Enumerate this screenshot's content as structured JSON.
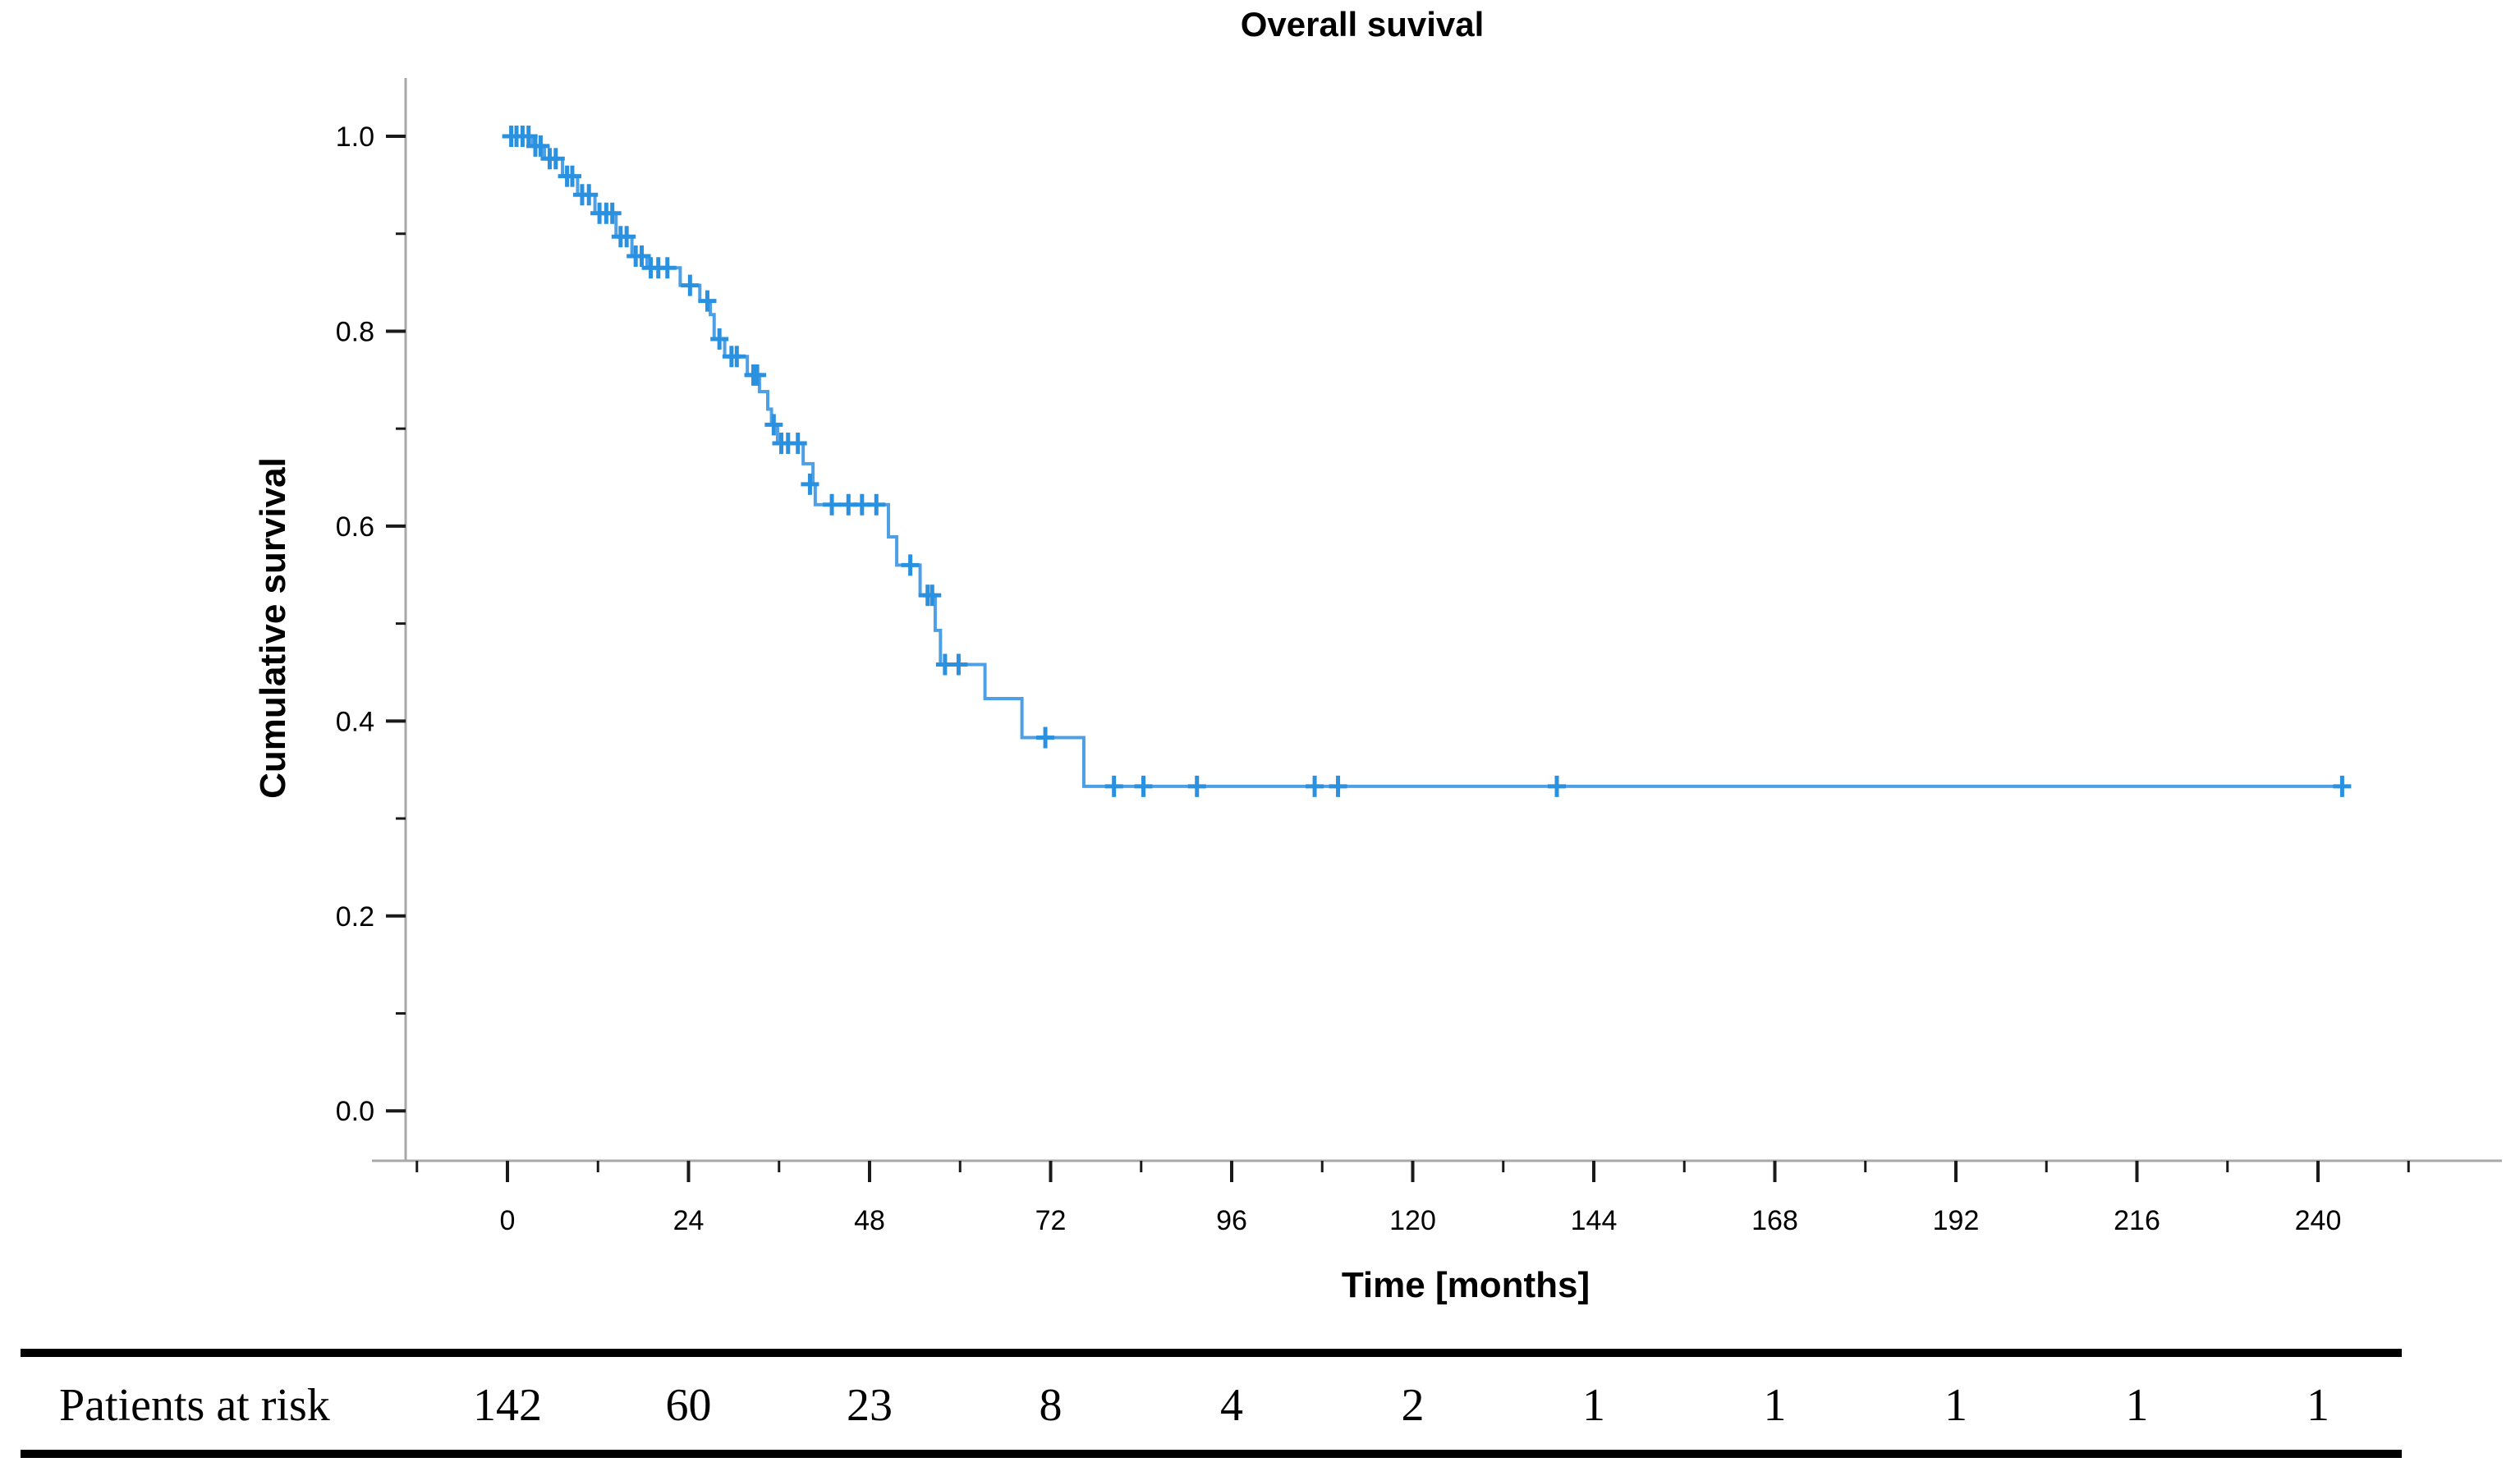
{
  "title": "Overall suvival",
  "axes": {
    "x": {
      "label": "Time [months]",
      "ticks": [
        0,
        24,
        48,
        72,
        96,
        120,
        144,
        168,
        192,
        216,
        240
      ],
      "minor_ticks": [
        -12,
        12,
        36,
        60,
        84,
        108,
        132,
        156,
        180,
        204,
        228,
        252
      ]
    },
    "y": {
      "label": "Cumulative survival",
      "tick_labels": [
        "1.0",
        "0.8",
        "0.6",
        "0.4",
        "0.2",
        "0.0"
      ],
      "tick_values": [
        1.0,
        0.8,
        0.6,
        0.4,
        0.2,
        0.0
      ],
      "minor_tick_values": [
        0.9,
        0.7,
        0.5,
        0.3,
        0.1
      ]
    }
  },
  "chart_data": {
    "type": "line",
    "subtype": "kaplan_meier_step",
    "title": "Overall suvival",
    "xlabel": "Time [months]",
    "ylabel": "Cumulative survival",
    "xlim": [
      -18,
      264
    ],
    "ylim": [
      0.0,
      1.05
    ],
    "grid": false,
    "legend": "none",
    "series": [
      {
        "name": "Overall survival",
        "start": [
          0,
          1.0
        ],
        "end_time": 243.2,
        "steps": [
          [
            3.3,
            0.99
          ],
          [
            4.9,
            0.977
          ],
          [
            7.3,
            0.959
          ],
          [
            9.3,
            0.94
          ],
          [
            11.6,
            0.921
          ],
          [
            14.4,
            0.897
          ],
          [
            16.5,
            0.877
          ],
          [
            18.5,
            0.865
          ],
          [
            22.9,
            0.847
          ],
          [
            25.5,
            0.831
          ],
          [
            26.9,
            0.817
          ],
          [
            27.4,
            0.792
          ],
          [
            28.8,
            0.774
          ],
          [
            31.8,
            0.755
          ],
          [
            33.4,
            0.738
          ],
          [
            34.5,
            0.72
          ],
          [
            35.0,
            0.704
          ],
          [
            35.8,
            0.685
          ],
          [
            39.2,
            0.664
          ],
          [
            40.5,
            0.643
          ],
          [
            40.8,
            0.622
          ],
          [
            50.5,
            0.589
          ],
          [
            51.6,
            0.56
          ],
          [
            54.7,
            0.529
          ],
          [
            56.7,
            0.493
          ],
          [
            57.4,
            0.458
          ],
          [
            63.3,
            0.423
          ],
          [
            68.2,
            0.383
          ],
          [
            76.4,
            0.333
          ]
        ],
        "censors": [
          [
            0.5,
            1.0
          ],
          [
            1.2,
            1.0
          ],
          [
            2.0,
            1.0
          ],
          [
            2.8,
            1.0
          ],
          [
            3.7,
            0.99
          ],
          [
            4.4,
            0.99
          ],
          [
            5.6,
            0.977
          ],
          [
            6.4,
            0.977
          ],
          [
            7.9,
            0.959
          ],
          [
            8.6,
            0.959
          ],
          [
            9.9,
            0.94
          ],
          [
            10.8,
            0.94
          ],
          [
            12.2,
            0.921
          ],
          [
            13.1,
            0.921
          ],
          [
            13.9,
            0.921
          ],
          [
            15.0,
            0.897
          ],
          [
            15.8,
            0.897
          ],
          [
            17.0,
            0.877
          ],
          [
            17.8,
            0.877
          ],
          [
            19.0,
            0.865
          ],
          [
            20.0,
            0.865
          ],
          [
            21.2,
            0.865
          ],
          [
            24.2,
            0.847
          ],
          [
            26.5,
            0.831
          ],
          [
            28.1,
            0.792
          ],
          [
            29.7,
            0.774
          ],
          [
            30.4,
            0.774
          ],
          [
            32.6,
            0.755
          ],
          [
            33.1,
            0.755
          ],
          [
            35.3,
            0.704
          ],
          [
            36.3,
            0.685
          ],
          [
            37.2,
            0.685
          ],
          [
            38.5,
            0.685
          ],
          [
            40.1,
            0.643
          ],
          [
            43.0,
            0.622
          ],
          [
            45.2,
            0.622
          ],
          [
            47.0,
            0.622
          ],
          [
            48.9,
            0.622
          ],
          [
            53.4,
            0.56
          ],
          [
            55.7,
            0.529
          ],
          [
            56.3,
            0.529
          ],
          [
            58.0,
            0.458
          ],
          [
            59.8,
            0.458
          ],
          [
            71.3,
            0.383
          ],
          [
            80.4,
            0.333
          ],
          [
            84.3,
            0.333
          ],
          [
            91.4,
            0.333
          ],
          [
            107.0,
            0.333
          ],
          [
            110.1,
            0.333
          ],
          [
            139.1,
            0.333
          ],
          [
            243.2,
            0.333
          ]
        ]
      }
    ]
  },
  "risk_table": {
    "label": "Patients at risk",
    "times": [
      0,
      24,
      48,
      72,
      96,
      120,
      144,
      168,
      192,
      216,
      240
    ],
    "counts": [
      142,
      60,
      23,
      8,
      4,
      2,
      1,
      1,
      1,
      1,
      1
    ]
  },
  "colors": {
    "curve": "#4d9fe6",
    "censor": "#2a90e0",
    "spine": "#a8a8a8",
    "tick": "#1a1a1a",
    "text": "#000000",
    "rule": "#000000"
  }
}
